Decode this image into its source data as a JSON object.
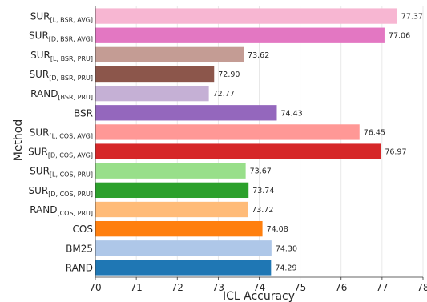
{
  "chart_data": {
    "type": "bar",
    "orientation": "horizontal",
    "xlabel": "ICL Accuracy",
    "ylabel": "Method",
    "xlim": [
      70,
      78
    ],
    "xticks": [
      70,
      71,
      72,
      73,
      74,
      75,
      76,
      77,
      78
    ],
    "grid": true,
    "categories": [
      {
        "main": "SUR",
        "sub": "[L, BSR, AVG]"
      },
      {
        "main": "SUR",
        "sub": "[D, BSR, AVG]"
      },
      {
        "main": "SUR",
        "sub": "[L, BSR, PRU]"
      },
      {
        "main": "SUR",
        "sub": "[D, BSR, PRU]"
      },
      {
        "main": "RAND",
        "sub": "[BSR, PRU]"
      },
      {
        "main": "BSR",
        "sub": ""
      },
      {
        "main": "SUR",
        "sub": "[L, COS, AVG]"
      },
      {
        "main": "SUR",
        "sub": "[D, COS, AVG]"
      },
      {
        "main": "SUR",
        "sub": "[L, COS, PRU]"
      },
      {
        "main": "SUR",
        "sub": "[D, COS, PRU]"
      },
      {
        "main": "RAND",
        "sub": "[COS, PRU]"
      },
      {
        "main": "COS",
        "sub": ""
      },
      {
        "main": "BM25",
        "sub": ""
      },
      {
        "main": "RAND",
        "sub": ""
      }
    ],
    "values": [
      77.37,
      77.06,
      73.62,
      72.9,
      72.77,
      74.43,
      76.45,
      76.97,
      73.67,
      73.74,
      73.72,
      74.08,
      74.3,
      74.29
    ],
    "value_labels": [
      "77.37",
      "77.06",
      "73.62",
      "72.90",
      "72.77",
      "74.43",
      "76.45",
      "76.97",
      "73.67",
      "73.74",
      "73.72",
      "74.08",
      "74.30",
      "74.29"
    ],
    "colors": [
      "#f7b6d2",
      "#e377c2",
      "#c49c94",
      "#8c564b",
      "#c5b0d5",
      "#9467bd",
      "#ff9896",
      "#d62728",
      "#98df8a",
      "#2ca02c",
      "#ffbb78",
      "#ff7f0e",
      "#aec7e8",
      "#1f77b4"
    ]
  }
}
